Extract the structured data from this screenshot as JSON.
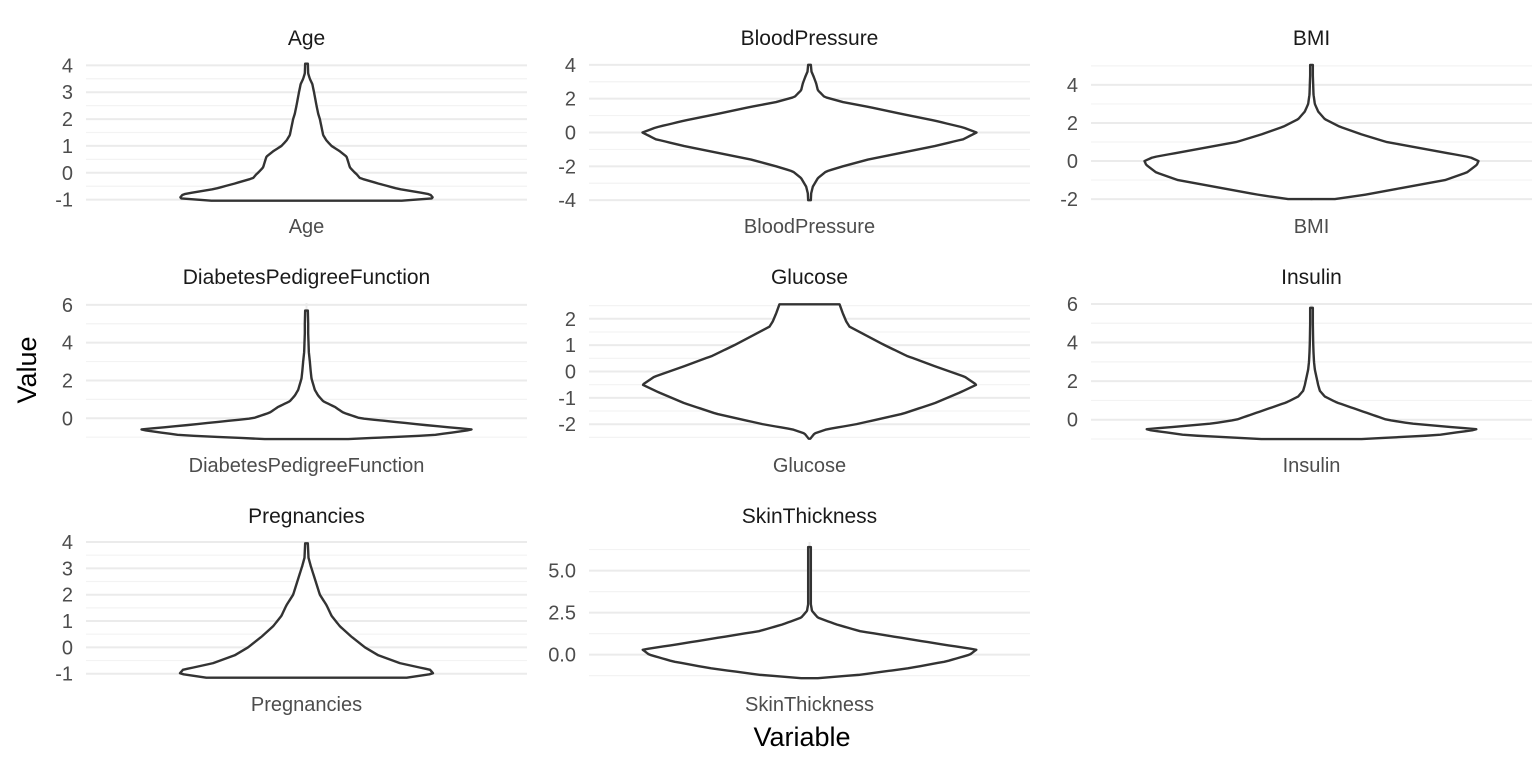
{
  "chart_data": {
    "type": "violin",
    "xlabel": "Variable",
    "ylabel": "Value",
    "panels": [
      {
        "title": "Age",
        "category": "Age",
        "ylim": [
          -1.05,
          4.05
        ],
        "yticks": [
          -1,
          0,
          1,
          2,
          3,
          4
        ],
        "tick_labels": [
          "-1",
          "0",
          "1",
          "2",
          "3",
          "4"
        ],
        "range": [
          -1.04,
          4.06
        ],
        "density": [
          [
            -1.04,
            0.57
          ],
          [
            -0.95,
            0.76
          ],
          [
            -0.8,
            0.74
          ],
          [
            -0.6,
            0.55
          ],
          [
            -0.4,
            0.43
          ],
          [
            -0.2,
            0.32
          ],
          [
            -0.05,
            0.3
          ],
          [
            0.0,
            0.29
          ],
          [
            0.2,
            0.26
          ],
          [
            0.4,
            0.25
          ],
          [
            0.6,
            0.24
          ],
          [
            0.8,
            0.2
          ],
          [
            1.0,
            0.15
          ],
          [
            1.2,
            0.12
          ],
          [
            1.4,
            0.1
          ],
          [
            1.7,
            0.09
          ],
          [
            2.0,
            0.08
          ],
          [
            2.2,
            0.07
          ],
          [
            2.5,
            0.06
          ],
          [
            3.0,
            0.045
          ],
          [
            3.3,
            0.035
          ],
          [
            3.5,
            0.02
          ],
          [
            3.7,
            0.01
          ],
          [
            4.06,
            0.008
          ]
        ]
      },
      {
        "title": "BloodPressure",
        "category": "BloodPressure",
        "ylim": [
          -4.05,
          4.05
        ],
        "yticks": [
          -4,
          -2,
          0,
          2,
          4
        ],
        "tick_labels": [
          "-4",
          "-2",
          "0",
          "2",
          "4"
        ],
        "range": [
          -4.0,
          4.0
        ],
        "density": [
          [
            -4.0,
            0.008
          ],
          [
            -3.6,
            0.01
          ],
          [
            -3.2,
            0.02
          ],
          [
            -2.7,
            0.05
          ],
          [
            -2.3,
            0.1
          ],
          [
            -2.0,
            0.2
          ],
          [
            -1.6,
            0.35
          ],
          [
            -1.2,
            0.55
          ],
          [
            -0.8,
            0.75
          ],
          [
            -0.4,
            0.92
          ],
          [
            0.0,
            1.0
          ],
          [
            0.3,
            0.92
          ],
          [
            0.7,
            0.75
          ],
          [
            1.1,
            0.55
          ],
          [
            1.5,
            0.36
          ],
          [
            1.8,
            0.2
          ],
          [
            2.1,
            0.09
          ],
          [
            2.5,
            0.05
          ],
          [
            2.9,
            0.04
          ],
          [
            3.3,
            0.025
          ],
          [
            3.6,
            0.012
          ],
          [
            4.0,
            0.008
          ]
        ]
      },
      {
        "title": "BMI",
        "category": "BMI",
        "ylim": [
          -2.1,
          5.1
        ],
        "yticks": [
          -2,
          0,
          2,
          4
        ],
        "tick_labels": [
          "-2",
          "0",
          "2",
          "4"
        ],
        "range": [
          -2.0,
          5.05
        ],
        "density": [
          [
            -2.0,
            0.14
          ],
          [
            -1.8,
            0.3
          ],
          [
            -1.4,
            0.55
          ],
          [
            -1.0,
            0.8
          ],
          [
            -0.6,
            0.93
          ],
          [
            -0.2,
            0.99
          ],
          [
            0.0,
            1.0
          ],
          [
            0.2,
            0.95
          ],
          [
            0.6,
            0.7
          ],
          [
            1.0,
            0.45
          ],
          [
            1.4,
            0.3
          ],
          [
            1.8,
            0.17
          ],
          [
            2.2,
            0.08
          ],
          [
            2.6,
            0.04
          ],
          [
            3.0,
            0.02
          ],
          [
            3.5,
            0.012
          ],
          [
            4.0,
            0.01
          ],
          [
            4.5,
            0.008
          ],
          [
            5.05,
            0.008
          ]
        ]
      },
      {
        "title": "DiabetesPedigreeFunction",
        "category": "DiabetesPedigreeFunction",
        "ylim": [
          -1.15,
          6.1
        ],
        "yticks": [
          0,
          2,
          4,
          6
        ],
        "tick_labels": [
          "0",
          "2",
          "4",
          "6"
        ],
        "range": [
          -1.1,
          5.7
        ],
        "density": [
          [
            -1.1,
            0.25
          ],
          [
            -0.9,
            0.75
          ],
          [
            -0.6,
            1.0
          ],
          [
            -0.35,
            0.7
          ],
          [
            0.0,
            0.32
          ],
          [
            0.3,
            0.22
          ],
          [
            0.6,
            0.17
          ],
          [
            0.9,
            0.1
          ],
          [
            1.2,
            0.07
          ],
          [
            1.5,
            0.05
          ],
          [
            1.8,
            0.04
          ],
          [
            2.1,
            0.03
          ],
          [
            2.5,
            0.025
          ],
          [
            3.0,
            0.02
          ],
          [
            3.5,
            0.014
          ],
          [
            4.0,
            0.012
          ],
          [
            4.5,
            0.01
          ],
          [
            5.0,
            0.01
          ],
          [
            5.7,
            0.008
          ]
        ]
      },
      {
        "title": "Glucose",
        "category": "Glucose",
        "ylim": [
          -2.6,
          2.6
        ],
        "yticks": [
          -2,
          -1,
          0,
          1,
          2
        ],
        "tick_labels": [
          "-2",
          "-1",
          "0",
          "1",
          "2"
        ],
        "range": [
          -2.55,
          2.55
        ],
        "density": [
          [
            -2.55,
            0.005
          ],
          [
            -2.35,
            0.03
          ],
          [
            -2.2,
            0.1
          ],
          [
            -2.0,
            0.28
          ],
          [
            -1.6,
            0.56
          ],
          [
            -1.2,
            0.75
          ],
          [
            -0.8,
            0.9
          ],
          [
            -0.5,
            1.0
          ],
          [
            -0.2,
            0.93
          ],
          [
            0.2,
            0.75
          ],
          [
            0.6,
            0.58
          ],
          [
            1.0,
            0.45
          ],
          [
            1.4,
            0.33
          ],
          [
            1.7,
            0.24
          ],
          [
            1.9,
            0.22
          ],
          [
            2.2,
            0.2
          ],
          [
            2.55,
            0.18
          ]
        ]
      },
      {
        "title": "Insulin",
        "category": "Insulin",
        "ylim": [
          -1.05,
          6.05
        ],
        "yticks": [
          0,
          2,
          4,
          6
        ],
        "tick_labels": [
          "0",
          "2",
          "4",
          "6"
        ],
        "range": [
          -1.0,
          5.8
        ],
        "density": [
          [
            -1.0,
            0.3
          ],
          [
            -0.8,
            0.75
          ],
          [
            -0.5,
            1.0
          ],
          [
            -0.2,
            0.6
          ],
          [
            0.0,
            0.45
          ],
          [
            0.3,
            0.35
          ],
          [
            0.6,
            0.25
          ],
          [
            0.9,
            0.15
          ],
          [
            1.2,
            0.08
          ],
          [
            1.5,
            0.05
          ],
          [
            1.8,
            0.04
          ],
          [
            2.2,
            0.03
          ],
          [
            2.6,
            0.02
          ],
          [
            3.0,
            0.015
          ],
          [
            3.5,
            0.012
          ],
          [
            4.0,
            0.01
          ],
          [
            5.0,
            0.008
          ],
          [
            5.8,
            0.008
          ]
        ]
      },
      {
        "title": "Pregnancies",
        "category": "Pregnancies",
        "ylim": [
          -1.2,
          4.0
        ],
        "yticks": [
          -1,
          0,
          1,
          2,
          3,
          4
        ],
        "tick_labels": [
          "-1",
          "0",
          "1",
          "2",
          "3",
          "4"
        ],
        "range": [
          -1.15,
          3.95
        ],
        "density": [
          [
            -1.15,
            0.6
          ],
          [
            -1.0,
            0.76
          ],
          [
            -0.85,
            0.74
          ],
          [
            -0.6,
            0.56
          ],
          [
            -0.3,
            0.43
          ],
          [
            0.0,
            0.35
          ],
          [
            0.4,
            0.27
          ],
          [
            0.8,
            0.2
          ],
          [
            1.2,
            0.15
          ],
          [
            1.6,
            0.12
          ],
          [
            2.0,
            0.08
          ],
          [
            2.4,
            0.06
          ],
          [
            2.8,
            0.04
          ],
          [
            3.1,
            0.025
          ],
          [
            3.4,
            0.012
          ],
          [
            3.95,
            0.008
          ]
        ]
      },
      {
        "title": "SkinThickness",
        "category": "SkinThickness",
        "ylim": [
          -1.45,
          6.7
        ],
        "yticks": [
          0,
          2.5,
          5
        ],
        "tick_labels": [
          "0.0",
          "2.5",
          "5.0"
        ],
        "range": [
          -1.4,
          6.4
        ],
        "density": [
          [
            -1.4,
            0.05
          ],
          [
            -1.2,
            0.3
          ],
          [
            -0.8,
            0.6
          ],
          [
            -0.4,
            0.82
          ],
          [
            0.0,
            0.96
          ],
          [
            0.3,
            1.0
          ],
          [
            0.6,
            0.8
          ],
          [
            1.0,
            0.55
          ],
          [
            1.4,
            0.3
          ],
          [
            1.8,
            0.16
          ],
          [
            2.2,
            0.05
          ],
          [
            2.6,
            0.015
          ],
          [
            3.0,
            0.008
          ],
          [
            4.0,
            0.008
          ],
          [
            5.0,
            0.008
          ],
          [
            6.4,
            0.008
          ]
        ]
      }
    ]
  }
}
